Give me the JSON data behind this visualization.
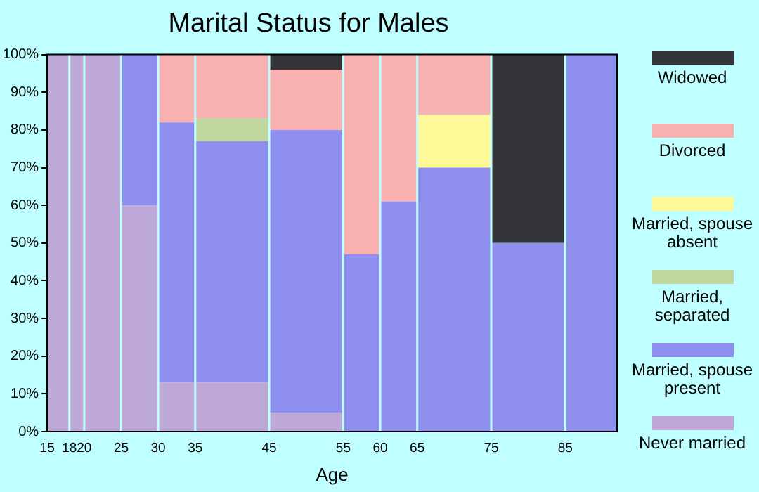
{
  "chart_data": {
    "type": "bar",
    "stacked": true,
    "title": "Marital Status for Males",
    "xlabel": "Age",
    "x": [
      16.5,
      19,
      22.5,
      27.5,
      32.5,
      40,
      50,
      57.5,
      62.5,
      70,
      80,
      88.5
    ],
    "xlim": [
      15,
      92
    ],
    "xticks": [
      15,
      18,
      20,
      25,
      30,
      35,
      45,
      55,
      60,
      65,
      75,
      85
    ],
    "ylim": [
      0,
      100
    ],
    "yticks": [
      {
        "value": 0,
        "label": "0%"
      },
      {
        "value": 10,
        "label": "10%"
      },
      {
        "value": 20,
        "label": "20%"
      },
      {
        "value": 30,
        "label": "30%"
      },
      {
        "value": 40,
        "label": "40%"
      },
      {
        "value": 50,
        "label": "50%"
      },
      {
        "value": 60,
        "label": "60%"
      },
      {
        "value": 70,
        "label": "70%"
      },
      {
        "value": 80,
        "label": "80%"
      },
      {
        "value": 90,
        "label": "90%"
      },
      {
        "value": 100,
        "label": "100%"
      }
    ],
    "grid": false,
    "legend": "right",
    "series": [
      {
        "name": "Never married",
        "color": "#bea8d8",
        "values": [
          100,
          100,
          100,
          60,
          13,
          13,
          5,
          0,
          0,
          0,
          0,
          0
        ]
      },
      {
        "name": "Married, spouse present",
        "color": "#8f8ff0",
        "values": [
          0,
          0,
          0,
          40,
          69,
          64,
          75,
          47,
          61,
          70,
          50,
          100
        ]
      },
      {
        "name": "Married, separated",
        "color": "#c0d8a0",
        "values": [
          0,
          0,
          0,
          0,
          0,
          6,
          0,
          0,
          0,
          0,
          0,
          0
        ]
      },
      {
        "name": "Married, spouse absent",
        "color": "#fff898",
        "values": [
          0,
          0,
          0,
          0,
          0,
          0,
          0,
          0,
          0,
          14,
          0,
          0
        ]
      },
      {
        "name": "Divorced",
        "color": "#f8b0b0",
        "values": [
          0,
          0,
          0,
          0,
          18,
          17,
          16,
          53,
          39,
          16,
          0,
          0
        ]
      },
      {
        "name": "Widowed",
        "color": "#343538",
        "values": [
          0,
          0,
          0,
          0,
          0,
          0,
          4,
          0,
          0,
          0,
          50,
          0
        ]
      }
    ]
  }
}
